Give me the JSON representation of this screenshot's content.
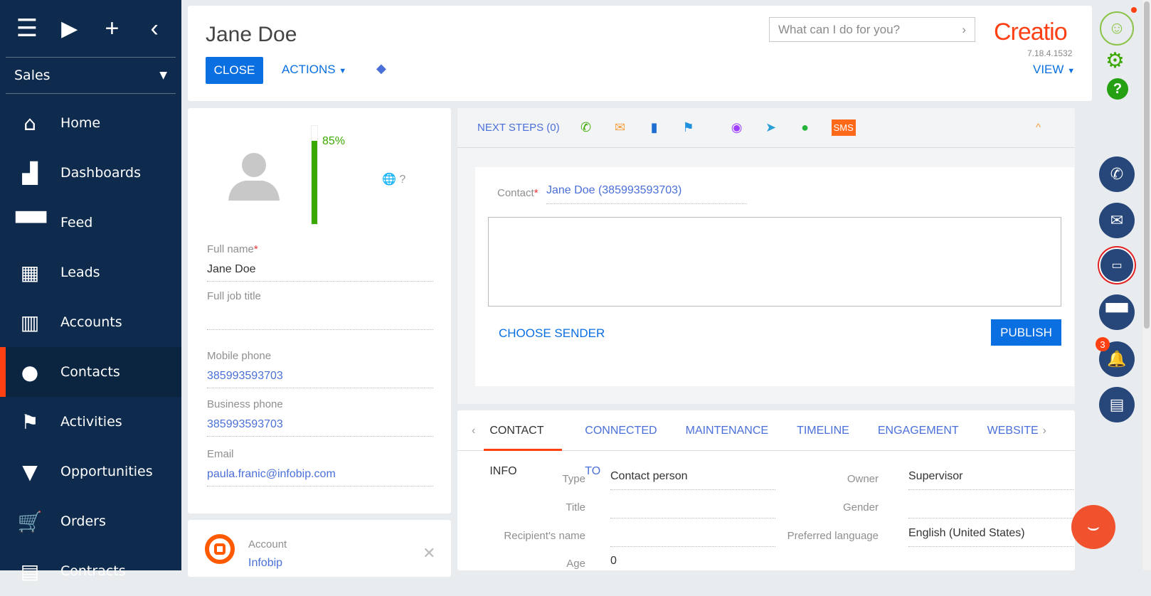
{
  "sidebar": {
    "workplace": "Sales",
    "items": [
      {
        "label": "Home",
        "icon": "home-icon"
      },
      {
        "label": "Dashboards",
        "icon": "bar-chart-icon"
      },
      {
        "label": "Feed",
        "icon": "chat-bubbles-icon"
      },
      {
        "label": "Leads",
        "icon": "leads-icon"
      },
      {
        "label": "Accounts",
        "icon": "building-icon"
      },
      {
        "label": "Contacts",
        "icon": "person-icon",
        "active": true
      },
      {
        "label": "Activities",
        "icon": "flag-icon"
      },
      {
        "label": "Opportunities",
        "icon": "funnel-icon"
      },
      {
        "label": "Orders",
        "icon": "cart-icon"
      },
      {
        "label": "Contracts",
        "icon": "document-icon"
      }
    ]
  },
  "header": {
    "title": "Jane Doe",
    "close": "CLOSE",
    "actions": "ACTIONS",
    "view": "VIEW",
    "search_placeholder": "What can I do for you?",
    "logo": "Creatio",
    "version": "7.18.4.1532"
  },
  "profile": {
    "completeness": "85%",
    "completeness_value": 85,
    "timezone": "?",
    "fields": [
      {
        "label": "Full name",
        "value": "Jane Doe",
        "required": true
      },
      {
        "label": "Full job title",
        "value": ""
      },
      {
        "label": "Mobile phone",
        "value": "385993593703"
      },
      {
        "label": "Business phone",
        "value": "385993593703"
      },
      {
        "label": "Email",
        "value": "paula.franic@infobip.com"
      }
    ]
  },
  "account": {
    "label": "Account",
    "value": "Infobip"
  },
  "next_steps": {
    "label": "NEXT STEPS (0)",
    "sms": "SMS",
    "contact_label": "Contact",
    "contact_value": "Jane Doe (385993593703)",
    "choose_sender": "CHOOSE SENDER",
    "publish": "PUBLISH"
  },
  "tabs": [
    "CONTACT INFO",
    "CONNECTED TO",
    "MAINTENANCE",
    "TIMELINE",
    "ENGAGEMENT",
    "WEBSITE"
  ],
  "contact_info": {
    "type_label": "Type",
    "type": "Contact person",
    "title_label": "Title",
    "title": "",
    "recipient_label": "Recipient's name",
    "recipient": "",
    "age_label": "Age",
    "age": "0",
    "owner_label": "Owner",
    "owner": "Supervisor",
    "gender_label": "Gender",
    "gender": "",
    "lang_label": "Preferred language",
    "lang": "English (United States)"
  },
  "notifications": {
    "count": "3"
  },
  "colors": {
    "sidebar": "#0e2b4d",
    "accent": "#0a6fe0",
    "brand": "#ff3f14",
    "progress": "#3aa800"
  }
}
